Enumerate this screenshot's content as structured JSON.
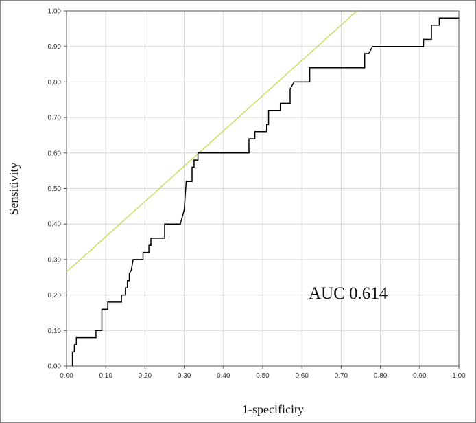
{
  "chart_data": {
    "type": "line",
    "xlabel": "1-specificity",
    "ylabel": "Sensitivity",
    "xlim": [
      0,
      1
    ],
    "ylim": [
      0,
      1
    ],
    "x_ticks": [
      "0.00",
      "0.10",
      "0.20",
      "0.30",
      "0.40",
      "0.50",
      "0.60",
      "0.70",
      "0.80",
      "0.90",
      "1.00"
    ],
    "y_ticks": [
      "0.00",
      "0.10",
      "0.20",
      "0.30",
      "0.40",
      "0.50",
      "0.60",
      "0.70",
      "0.80",
      "0.90",
      "1.00"
    ],
    "grid": true,
    "annotation": "AUC 0.614",
    "series": [
      {
        "color": "#000000",
        "x": [
          0.015,
          0.015,
          0.02,
          0.02,
          0.025,
          0.025,
          0.03,
          0.03,
          0.075,
          0.075,
          0.09,
          0.09,
          0.105,
          0.105,
          0.14,
          0.14,
          0.15,
          0.15,
          0.155,
          0.155,
          0.16,
          0.16,
          0.165,
          0.17,
          0.175,
          0.175,
          0.195,
          0.195,
          0.21,
          0.21,
          0.215,
          0.215,
          0.225,
          0.225,
          0.25,
          0.25,
          0.29,
          0.3,
          0.305,
          0.305,
          0.32,
          0.32,
          0.325,
          0.325,
          0.335,
          0.335,
          0.34,
          0.34,
          0.465,
          0.465,
          0.48,
          0.48,
          0.51,
          0.51,
          0.515,
          0.515,
          0.52,
          0.52,
          0.545,
          0.545,
          0.57,
          0.57,
          0.58,
          0.6,
          0.62,
          0.62,
          0.76,
          0.76,
          0.77,
          0.78,
          0.91,
          0.91,
          0.93,
          0.93,
          0.95,
          0.95,
          1.0
        ],
        "y": [
          0.0,
          0.04,
          0.04,
          0.06,
          0.06,
          0.08,
          0.08,
          0.08,
          0.08,
          0.1,
          0.1,
          0.16,
          0.16,
          0.18,
          0.18,
          0.2,
          0.2,
          0.22,
          0.22,
          0.24,
          0.24,
          0.26,
          0.27,
          0.3,
          0.3,
          0.3,
          0.3,
          0.32,
          0.32,
          0.34,
          0.34,
          0.36,
          0.36,
          0.36,
          0.36,
          0.4,
          0.4,
          0.44,
          0.52,
          0.52,
          0.52,
          0.56,
          0.56,
          0.58,
          0.58,
          0.6,
          0.6,
          0.6,
          0.6,
          0.64,
          0.64,
          0.66,
          0.66,
          0.68,
          0.68,
          0.72,
          0.72,
          0.72,
          0.72,
          0.74,
          0.74,
          0.78,
          0.8,
          0.8,
          0.8,
          0.84,
          0.84,
          0.88,
          0.88,
          0.9,
          0.9,
          0.92,
          0.92,
          0.96,
          0.96,
          0.98,
          0.98
        ]
      },
      {
        "color": "#c8d64a",
        "x": [
          0.0,
          0.74
        ],
        "y": [
          0.265,
          1.0
        ]
      }
    ]
  }
}
